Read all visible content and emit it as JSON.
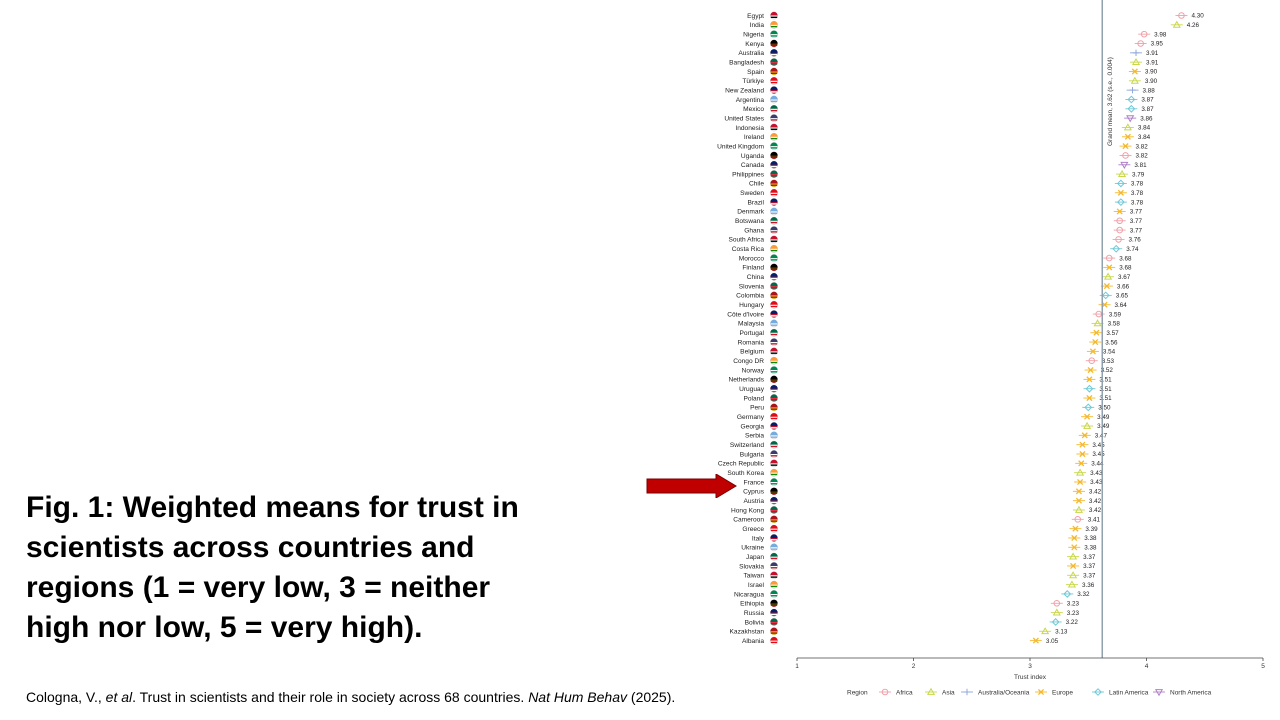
{
  "slide": {
    "title": "Fig. 1: Weighted means for trust in\nscientists across countries and\nregions (1 = very low, 3 = neither\nhigh nor low, 5 = very high).",
    "citation": {
      "authors": "Cologna, V., ",
      "etal": "et al",
      "text": ". Trust in scientists and their role in society across 68 countries. ",
      "journal": "Nat Hum Behav",
      "year": " (2025)."
    },
    "highlighted_country": "France"
  },
  "colors": {
    "Africa": "#f0a0a8",
    "Asia": "#c8d848",
    "Australia/Oceania": "#8fa8d8",
    "Europe": "#f5b82a",
    "Latin America": "#6ec8d8",
    "North America": "#b07ec8",
    "arrow": "#c00000",
    "grand_mean_line": "#8a9aaa"
  },
  "chart_data": {
    "type": "scatter",
    "xlabel": "Trust index",
    "xlim": [
      1,
      5
    ],
    "xticks": [
      1,
      2,
      3,
      4,
      5
    ],
    "grand_mean": 3.62,
    "grand_mean_label": "Grand mean, 3.62 (s.e., 0.004)",
    "legend_title": "Region",
    "legend_placement": "bottom",
    "regions": [
      "Africa",
      "Asia",
      "Australia/Oceania",
      "Europe",
      "Latin America",
      "North America"
    ],
    "points": [
      {
        "country": "Egypt",
        "region": "Africa",
        "value": 4.3
      },
      {
        "country": "India",
        "region": "Asia",
        "value": 4.26
      },
      {
        "country": "Nigeria",
        "region": "Africa",
        "value": 3.98
      },
      {
        "country": "Kenya",
        "region": "Africa",
        "value": 3.95
      },
      {
        "country": "Australia",
        "region": "Australia/Oceania",
        "value": 3.91
      },
      {
        "country": "Bangladesh",
        "region": "Asia",
        "value": 3.91
      },
      {
        "country": "Spain",
        "region": "Europe",
        "value": 3.9
      },
      {
        "country": "Türkiye",
        "region": "Asia",
        "value": 3.9
      },
      {
        "country": "New Zealand",
        "region": "Australia/Oceania",
        "value": 3.88
      },
      {
        "country": "Argentina",
        "region": "Latin America",
        "value": 3.87
      },
      {
        "country": "Mexico",
        "region": "Latin America",
        "value": 3.87
      },
      {
        "country": "United States",
        "region": "North America",
        "value": 3.86
      },
      {
        "country": "Indonesia",
        "region": "Asia",
        "value": 3.84
      },
      {
        "country": "Ireland",
        "region": "Europe",
        "value": 3.84
      },
      {
        "country": "United Kingdom",
        "region": "Europe",
        "value": 3.82
      },
      {
        "country": "Uganda",
        "region": "Africa",
        "value": 3.82
      },
      {
        "country": "Canada",
        "region": "North America",
        "value": 3.81
      },
      {
        "country": "Philippines",
        "region": "Asia",
        "value": 3.79
      },
      {
        "country": "Chile",
        "region": "Latin America",
        "value": 3.78
      },
      {
        "country": "Sweden",
        "region": "Europe",
        "value": 3.78
      },
      {
        "country": "Brazil",
        "region": "Latin America",
        "value": 3.78
      },
      {
        "country": "Denmark",
        "region": "Europe",
        "value": 3.77
      },
      {
        "country": "Botswana",
        "region": "Africa",
        "value": 3.77
      },
      {
        "country": "Ghana",
        "region": "Africa",
        "value": 3.77
      },
      {
        "country": "South Africa",
        "region": "Africa",
        "value": 3.76
      },
      {
        "country": "Costa Rica",
        "region": "Latin America",
        "value": 3.74
      },
      {
        "country": "Morocco",
        "region": "Africa",
        "value": 3.68
      },
      {
        "country": "Finland",
        "region": "Europe",
        "value": 3.68
      },
      {
        "country": "China",
        "region": "Asia",
        "value": 3.67
      },
      {
        "country": "Slovenia",
        "region": "Europe",
        "value": 3.66
      },
      {
        "country": "Colombia",
        "region": "Latin America",
        "value": 3.65
      },
      {
        "country": "Hungary",
        "region": "Europe",
        "value": 3.64
      },
      {
        "country": "Côte d'Ivoire",
        "region": "Africa",
        "value": 3.59
      },
      {
        "country": "Malaysia",
        "region": "Asia",
        "value": 3.58
      },
      {
        "country": "Portugal",
        "region": "Europe",
        "value": 3.57
      },
      {
        "country": "Romania",
        "region": "Europe",
        "value": 3.56
      },
      {
        "country": "Belgium",
        "region": "Europe",
        "value": 3.54
      },
      {
        "country": "Congo DR",
        "region": "Africa",
        "value": 3.53
      },
      {
        "country": "Norway",
        "region": "Europe",
        "value": 3.52
      },
      {
        "country": "Netherlands",
        "region": "Europe",
        "value": 3.51
      },
      {
        "country": "Uruguay",
        "region": "Latin America",
        "value": 3.51
      },
      {
        "country": "Poland",
        "region": "Europe",
        "value": 3.51
      },
      {
        "country": "Peru",
        "region": "Latin America",
        "value": 3.5
      },
      {
        "country": "Germany",
        "region": "Europe",
        "value": 3.49
      },
      {
        "country": "Georgia",
        "region": "Asia",
        "value": 3.49
      },
      {
        "country": "Serbia",
        "region": "Europe",
        "value": 3.47
      },
      {
        "country": "Switzerland",
        "region": "Europe",
        "value": 3.45
      },
      {
        "country": "Bulgaria",
        "region": "Europe",
        "value": 3.45
      },
      {
        "country": "Czech Republic",
        "region": "Europe",
        "value": 3.44
      },
      {
        "country": "South Korea",
        "region": "Asia",
        "value": 3.43
      },
      {
        "country": "France",
        "region": "Europe",
        "value": 3.43
      },
      {
        "country": "Cyprus",
        "region": "Europe",
        "value": 3.42
      },
      {
        "country": "Austria",
        "region": "Europe",
        "value": 3.42
      },
      {
        "country": "Hong Kong",
        "region": "Asia",
        "value": 3.42
      },
      {
        "country": "Cameroon",
        "region": "Africa",
        "value": 3.41
      },
      {
        "country": "Greece",
        "region": "Europe",
        "value": 3.39
      },
      {
        "country": "Italy",
        "region": "Europe",
        "value": 3.38
      },
      {
        "country": "Ukraine",
        "region": "Europe",
        "value": 3.38
      },
      {
        "country": "Japan",
        "region": "Asia",
        "value": 3.37
      },
      {
        "country": "Slovakia",
        "region": "Europe",
        "value": 3.37
      },
      {
        "country": "Taiwan",
        "region": "Asia",
        "value": 3.37
      },
      {
        "country": "Israel",
        "region": "Asia",
        "value": 3.36
      },
      {
        "country": "Nicaragua",
        "region": "Latin America",
        "value": 3.32
      },
      {
        "country": "Ethiopia",
        "region": "Africa",
        "value": 3.23
      },
      {
        "country": "Russia",
        "region": "Asia",
        "value": 3.23
      },
      {
        "country": "Bolivia",
        "region": "Latin America",
        "value": 3.22
      },
      {
        "country": "Kazakhstan",
        "region": "Asia",
        "value": 3.13
      },
      {
        "country": "Albania",
        "region": "Europe",
        "value": 3.05
      }
    ]
  }
}
